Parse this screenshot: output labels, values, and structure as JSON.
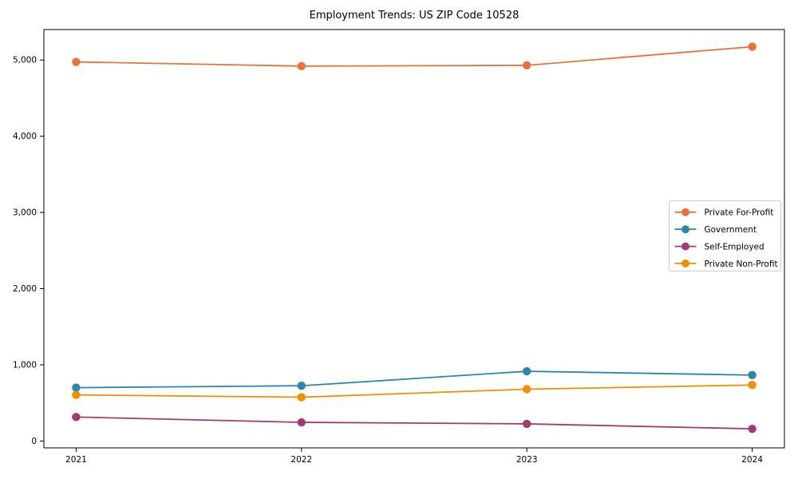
{
  "figure": {
    "background": "#ffffff",
    "axis_color": "#000000",
    "legend_border_color": "#cccccc",
    "legend_background": "#ffffff"
  },
  "chart_data": {
    "type": "line",
    "title": "Employment Trends: US ZIP Code 10528",
    "x_categories": [
      "2021",
      "2022",
      "2023",
      "2024"
    ],
    "series": [
      {
        "name": "Private For-Profit",
        "color": "#E8743B",
        "values": [
          4975,
          4920,
          4930,
          5175
        ]
      },
      {
        "name": "Government",
        "color": "#2E86AB",
        "values": [
          700,
          725,
          915,
          865
        ]
      },
      {
        "name": "Self-Employed",
        "color": "#A23B72",
        "values": [
          315,
          245,
          225,
          160
        ]
      },
      {
        "name": "Private Non-Profit",
        "color": "#F18F01",
        "values": [
          605,
          575,
          680,
          735
        ]
      }
    ],
    "xlabel": "",
    "ylabel": "",
    "yticks": [
      0,
      1000,
      2000,
      3000,
      4000,
      5000
    ],
    "ytick_labels": [
      "0",
      "1,000",
      "2,000",
      "3,000",
      "4,000",
      "5,000"
    ],
    "ylim": [
      -90,
      5400
    ],
    "grid": false,
    "marker": "circle",
    "legend_position": "center-right"
  }
}
